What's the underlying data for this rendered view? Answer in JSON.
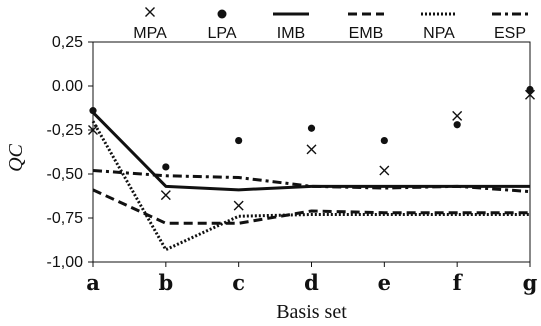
{
  "chart_data": {
    "type": "line",
    "xlabel": "Basis set",
    "ylabel": "QC",
    "categories": [
      "a",
      "b",
      "c",
      "d",
      "e",
      "f",
      "g"
    ],
    "ylim": [
      -1.0,
      0.25
    ],
    "yticks": [
      "0,25",
      "0.00",
      "-0,25",
      "-0,50",
      "-0,75",
      "-1,00"
    ],
    "ytick_values": [
      0.25,
      0.0,
      -0.25,
      -0.5,
      -0.75,
      -1.0
    ],
    "grid": false,
    "legend_position": "top",
    "series": [
      {
        "name": "MPA",
        "style": "cross-marker",
        "values": [
          -0.25,
          -0.62,
          -0.68,
          -0.36,
          -0.48,
          -0.17,
          -0.05
        ]
      },
      {
        "name": "LPA",
        "style": "dot-marker",
        "values": [
          -0.14,
          -0.46,
          -0.31,
          -0.24,
          -0.31,
          -0.22,
          -0.02
        ]
      },
      {
        "name": "IMB",
        "style": "solid",
        "values": [
          -0.15,
          -0.57,
          -0.59,
          -0.57,
          -0.57,
          -0.57,
          -0.57
        ]
      },
      {
        "name": "EMB",
        "style": "dashed",
        "values": [
          -0.59,
          -0.78,
          -0.78,
          -0.71,
          -0.72,
          -0.72,
          -0.72
        ]
      },
      {
        "name": "NPA",
        "style": "dotted",
        "values": [
          -0.2,
          -0.93,
          -0.74,
          -0.73,
          -0.73,
          -0.73,
          -0.73
        ]
      },
      {
        "name": "ESP",
        "style": "dash-dot",
        "values": [
          -0.48,
          -0.51,
          -0.52,
          -0.57,
          -0.58,
          -0.57,
          -0.6
        ]
      }
    ]
  }
}
